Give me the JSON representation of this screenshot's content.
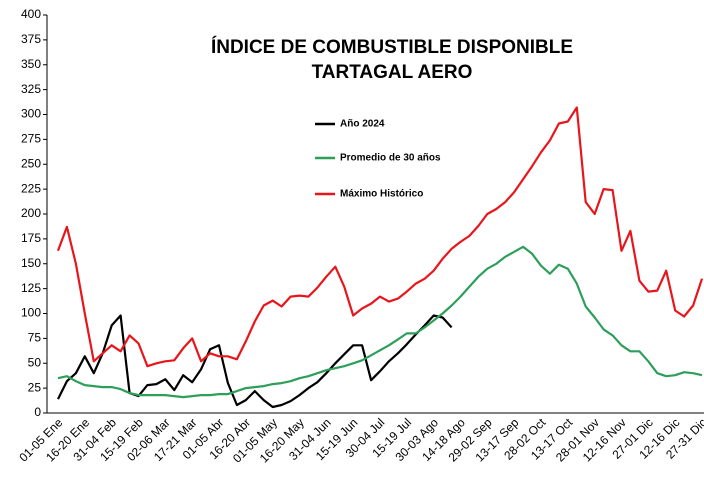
{
  "chart_data": {
    "type": "line",
    "title": [
      "ÍNDICE DE COMBUSTIBLE DISPONIBLE",
      "TARTAGAL AERO"
    ],
    "categories": [
      "01-05 Ene",
      null,
      null,
      "16-20 Ene",
      null,
      null,
      "31-04 Feb",
      null,
      null,
      "15-19 Feb",
      null,
      null,
      "02-06 Mar",
      null,
      null,
      "17-21 Mar",
      null,
      null,
      "01-05 Abr",
      null,
      null,
      "16-20 Abr",
      null,
      null,
      "01-05 May",
      null,
      null,
      "16-20 May",
      null,
      null,
      "31-04 Jun",
      null,
      null,
      "15-19 Jun",
      null,
      null,
      "30-04 Jul",
      null,
      null,
      "15-19 Jul",
      null,
      null,
      "30-03 Ago",
      null,
      null,
      "14-18 Ago",
      null,
      null,
      "29-02 Sep",
      null,
      null,
      "13-17 Sep",
      null,
      null,
      "28-02 Oct",
      null,
      null,
      "13-17 Oct",
      null,
      null,
      "28-01 Nov",
      null,
      null,
      "12-16 Nov",
      null,
      null,
      "27-01 Dic",
      null,
      null,
      "12-16 Dic",
      null,
      null,
      "27-31 Dic"
    ],
    "series": [
      {
        "name": "Año 2024",
        "color": "#000000",
        "values": [
          14,
          32,
          40,
          57,
          40,
          60,
          88,
          98,
          20,
          17,
          28,
          29,
          34,
          23,
          38,
          31,
          44,
          64,
          68,
          30,
          8,
          13,
          22,
          13,
          6,
          8,
          12,
          18,
          25,
          31,
          40,
          50,
          59,
          68,
          68,
          33,
          42,
          52,
          60,
          69,
          79,
          88,
          98,
          96,
          86,
          null,
          null,
          null,
          null,
          null,
          null,
          null,
          null,
          null,
          null,
          null,
          null,
          null,
          null,
          null,
          null,
          null,
          null,
          null,
          null,
          null,
          null,
          null,
          null,
          null,
          null,
          null,
          null
        ]
      },
      {
        "name": "Promedio de 30 años",
        "color": "#2e9e5b",
        "values": [
          35,
          37,
          32,
          28,
          27,
          26,
          26,
          24,
          20,
          18,
          18,
          18,
          18,
          17,
          16,
          17,
          18,
          18,
          19,
          19,
          22,
          25,
          26,
          27,
          29,
          30,
          32,
          35,
          37,
          40,
          43,
          45,
          47,
          50,
          53,
          58,
          63,
          68,
          74,
          80,
          80,
          86,
          93,
          100,
          108,
          117,
          127,
          137,
          145,
          150,
          157,
          162,
          167,
          160,
          148,
          140,
          149,
          145,
          130,
          107,
          96,
          84,
          78,
          68,
          62,
          62,
          52,
          40,
          37,
          38,
          41,
          40,
          38
        ]
      },
      {
        "name": "Máximo Histórico",
        "color": "#e8161b",
        "values": [
          163,
          187,
          150,
          100,
          52,
          60,
          68,
          62,
          78,
          70,
          47,
          50,
          52,
          53,
          65,
          75,
          52,
          60,
          57,
          57,
          54,
          72,
          92,
          108,
          113,
          107,
          117,
          118,
          117,
          126,
          137,
          147,
          127,
          98,
          105,
          110,
          117,
          112,
          115,
          122,
          130,
          135,
          143,
          155,
          165,
          172,
          178,
          188,
          200,
          205,
          212,
          222,
          235,
          248,
          262,
          274,
          291,
          293,
          307,
          212,
          200,
          225,
          224,
          163,
          183,
          133,
          122,
          123,
          143,
          103,
          97,
          108,
          135
        ]
      }
    ],
    "ylim": [
      0,
      400
    ],
    "yticks": [
      0,
      25,
      50,
      75,
      100,
      125,
      150,
      175,
      200,
      225,
      250,
      275,
      300,
      325,
      350,
      375,
      400
    ]
  }
}
